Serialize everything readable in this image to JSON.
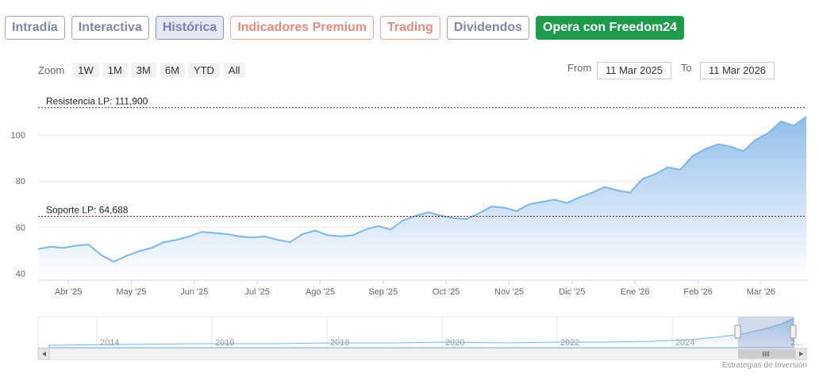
{
  "tabs": [
    {
      "label": "Intradía",
      "kind": "normal"
    },
    {
      "label": "Interactiva",
      "kind": "normal"
    },
    {
      "label": "Histórica",
      "kind": "active"
    },
    {
      "label": "Indicadores Premium",
      "kind": "premium"
    },
    {
      "label": "Trading",
      "kind": "trading"
    },
    {
      "label": "Dividendos",
      "kind": "normal"
    },
    {
      "label": "Opera con Freedom24",
      "kind": "freedom"
    }
  ],
  "zoom": {
    "label": "Zoom",
    "buttons": [
      "1W",
      "1M",
      "3M",
      "6M",
      "YTD",
      "All"
    ]
  },
  "range": {
    "from_label": "From",
    "from_value": "11 Mar 2025",
    "to_label": "To",
    "to_value": "11 Mar 2026"
  },
  "credits": "Estrategias de Inversión",
  "colors": {
    "line": "#7cb5ec",
    "area_top": "#8bbbe9",
    "area_bottom": "#ffffff",
    "resistance": "#333333",
    "support": "#8b0000"
  },
  "chart_data": {
    "type": "area",
    "title": "",
    "xlabel": "",
    "ylabel": "",
    "ylim": [
      37,
      118
    ],
    "yticks": [
      40,
      60,
      80,
      100
    ],
    "x_tick_labels": [
      "Abr '25",
      "May '25",
      "Jun '25",
      "Jul '25",
      "Ago '25",
      "Sep '25",
      "Oct '25",
      "Nov '25",
      "Dic '25",
      "Ene '26",
      "Feb '26",
      "Mar '26"
    ],
    "x": [
      0,
      0.2,
      0.4,
      0.6,
      0.8,
      1.0,
      1.2,
      1.4,
      1.6,
      1.8,
      2.0,
      2.2,
      2.4,
      2.6,
      2.8,
      3.0,
      3.2,
      3.4,
      3.6,
      3.8,
      4.0,
      4.2,
      4.4,
      4.6,
      4.8,
      5.0,
      5.2,
      5.4,
      5.6,
      5.8,
      6.0,
      6.2,
      6.4,
      6.6,
      6.8,
      7.0,
      7.2,
      7.4,
      7.6,
      7.8,
      8.0,
      8.2,
      8.4,
      8.6,
      8.8,
      9.0,
      9.2,
      9.4,
      9.6,
      9.8,
      10.0,
      10.2,
      10.4,
      10.6,
      10.8,
      11.0,
      11.2,
      11.4,
      11.6,
      11.8,
      12.0,
      12.2
    ],
    "values": [
      50.5,
      51.5,
      51,
      52,
      52.5,
      48,
      45,
      47.5,
      49.5,
      51,
      53.5,
      54.5,
      56,
      58,
      57.5,
      57,
      56,
      55.5,
      56,
      54.5,
      53.5,
      57,
      58.5,
      56.5,
      56,
      56.5,
      59,
      60.5,
      59,
      63,
      65,
      66.5,
      65,
      64,
      63.5,
      66,
      69,
      68.5,
      67,
      70,
      71,
      72,
      70.5,
      73,
      75,
      77.5,
      76,
      75,
      81,
      83,
      86,
      85,
      91,
      94,
      96,
      95,
      93,
      98,
      101,
      106,
      104,
      108
    ],
    "annotations": [
      {
        "label": "Resistencia LP: 111,900",
        "value": 111.9,
        "style": "dashed"
      },
      {
        "label": "Soporte LP: 64,688",
        "value": 64.688,
        "style": "dashed"
      }
    ],
    "navigator": {
      "year_labels": [
        "2014",
        "2016",
        "2018",
        "2020",
        "2022",
        "2024",
        "2..."
      ]
    },
    "grid": true,
    "legend": "none"
  }
}
